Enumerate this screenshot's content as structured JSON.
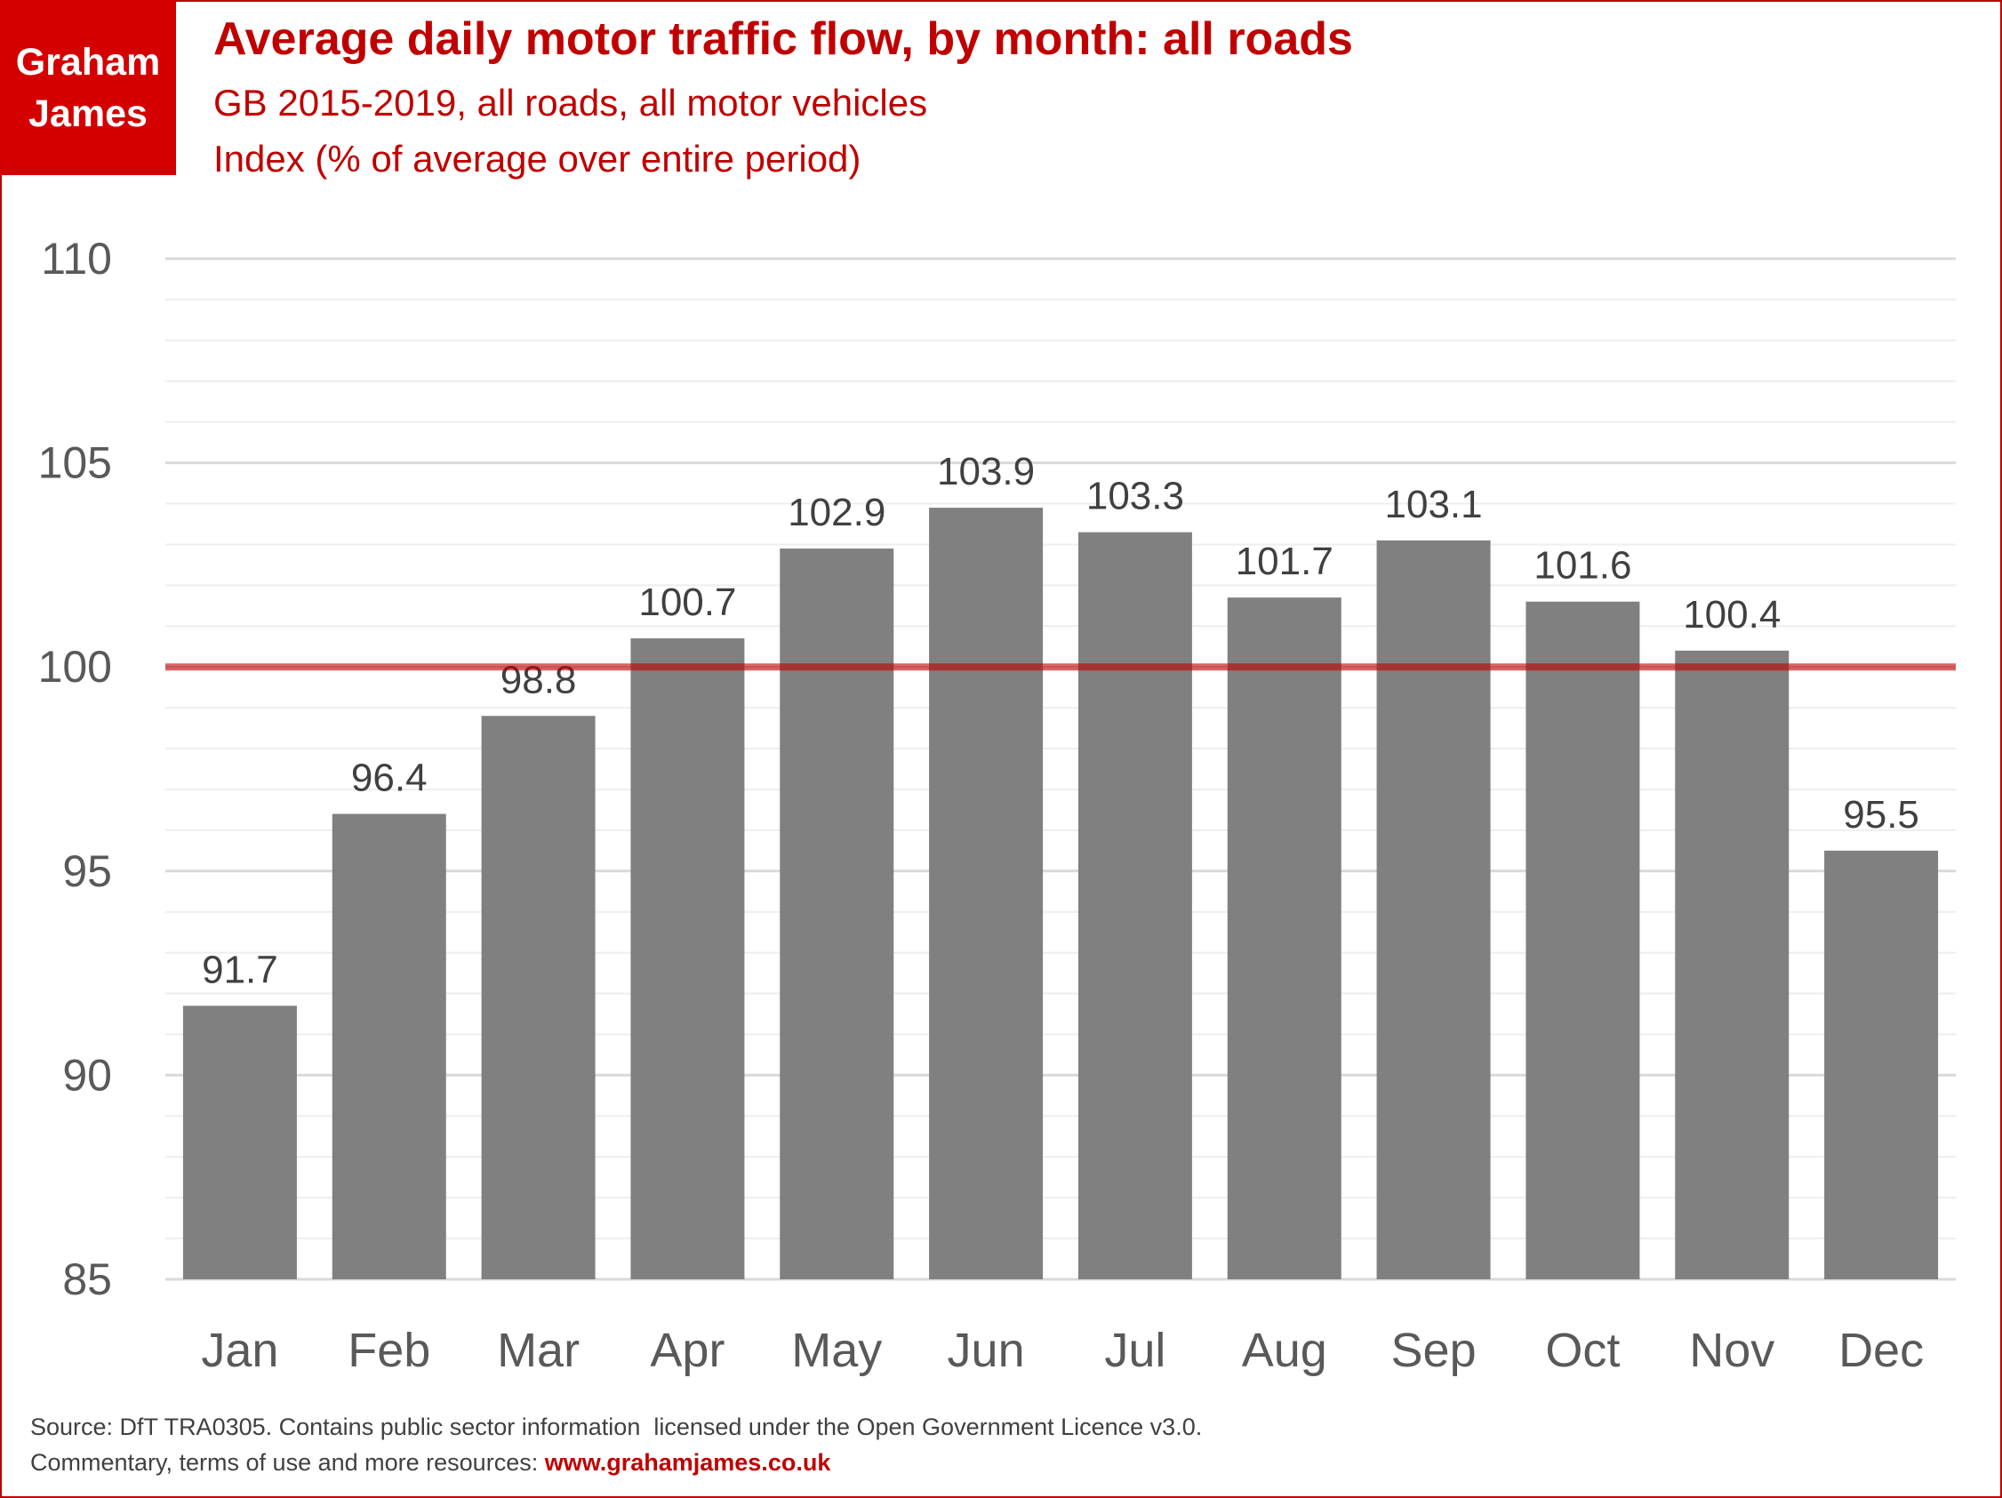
{
  "logo": {
    "line1": "Graham",
    "line2": "James"
  },
  "chart_data": {
    "type": "bar",
    "title": "Average daily motor traffic flow, by month: all roads",
    "subtitle": "GB 2015-2019, all roads, all motor vehicles",
    "subtitle2": "Index (% of average over entire period)",
    "categories": [
      "Jan",
      "Feb",
      "Mar",
      "Apr",
      "May",
      "Jun",
      "Jul",
      "Aug",
      "Sep",
      "Oct",
      "Nov",
      "Dec"
    ],
    "values": [
      91.7,
      96.4,
      98.8,
      100.7,
      102.9,
      103.9,
      103.3,
      101.7,
      103.1,
      101.6,
      100.4,
      95.5
    ],
    "value_labels": [
      "91.7",
      "96.4",
      "98.8",
      "100.7",
      "102.9",
      "103.9",
      "103.3",
      "101.7",
      "103.1",
      "101.6",
      "100.4",
      "95.5"
    ],
    "ylim": [
      85,
      110
    ],
    "yticks": [
      85,
      90,
      95,
      100,
      105,
      110
    ],
    "ytick_labels": [
      "85",
      "90",
      "95",
      "100",
      "105",
      "110"
    ],
    "minor_grid_step": 1,
    "reference_line": 100,
    "xlabel": "",
    "ylabel": "",
    "grid": true,
    "colors": {
      "bar": "#808080",
      "reference": "#c00000",
      "grid": "#d9d9d9",
      "minor_grid": "#eeeeee"
    }
  },
  "footer": {
    "source": "Source: DfT TRA0305. Contains public sector information  licensed under the Open Government Licence v3.0.",
    "commentary_prefix": "Commentary, terms of use and more resources: ",
    "website": "www.grahamjames.co.uk"
  }
}
